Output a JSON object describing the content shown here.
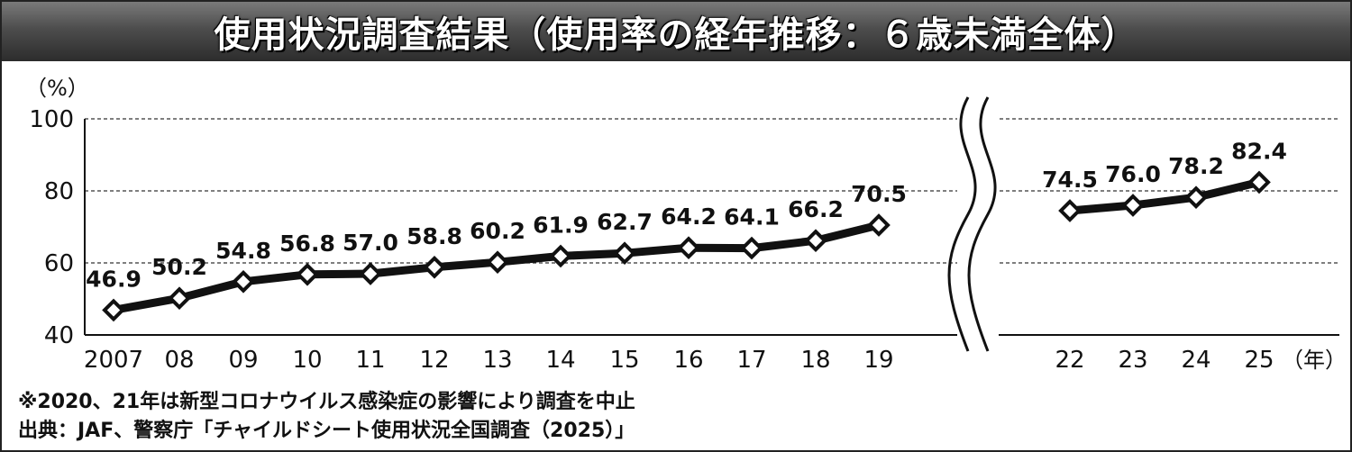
{
  "title": "使用状況調査結果（使用率の経年推移：６歳未満全体）",
  "chart_data": {
    "type": "line",
    "title": "使用状況調査結果（使用率の経年推移：６歳未満全体）",
    "ylabel": "（%）",
    "xlabel": "（年）",
    "ylim": [
      40,
      100
    ],
    "yticks": [
      "40",
      "60",
      "80",
      "100"
    ],
    "grid": "horizontal dashed at 60, 80, 100",
    "axis_break": "between 19 and 22",
    "x": [
      "2007",
      "08",
      "09",
      "10",
      "11",
      "12",
      "13",
      "14",
      "15",
      "16",
      "17",
      "18",
      "19",
      "22",
      "23",
      "24",
      "25"
    ],
    "series": [
      {
        "values": [
          46.9,
          50.2,
          54.8,
          56.8,
          57.0,
          58.8,
          60.2,
          61.9,
          62.7,
          64.2,
          64.1,
          66.2,
          70.5,
          74.5,
          76.0,
          78.2,
          82.4
        ],
        "labels": [
          "46.9",
          "50.2",
          "54.8",
          "56.8",
          "57.0",
          "58.8",
          "60.2",
          "61.9",
          "62.7",
          "64.2",
          "64.1",
          "66.2",
          "70.5",
          "74.5",
          "76.0",
          "78.2",
          "82.4"
        ]
      }
    ]
  },
  "footnotes": {
    "note": "※2020、21年は新型コロナウイルス感染症の影響により調査を中止",
    "source": "出典：JAF、警察庁「チャイルドシート使用状況全国調査（2025）」"
  }
}
